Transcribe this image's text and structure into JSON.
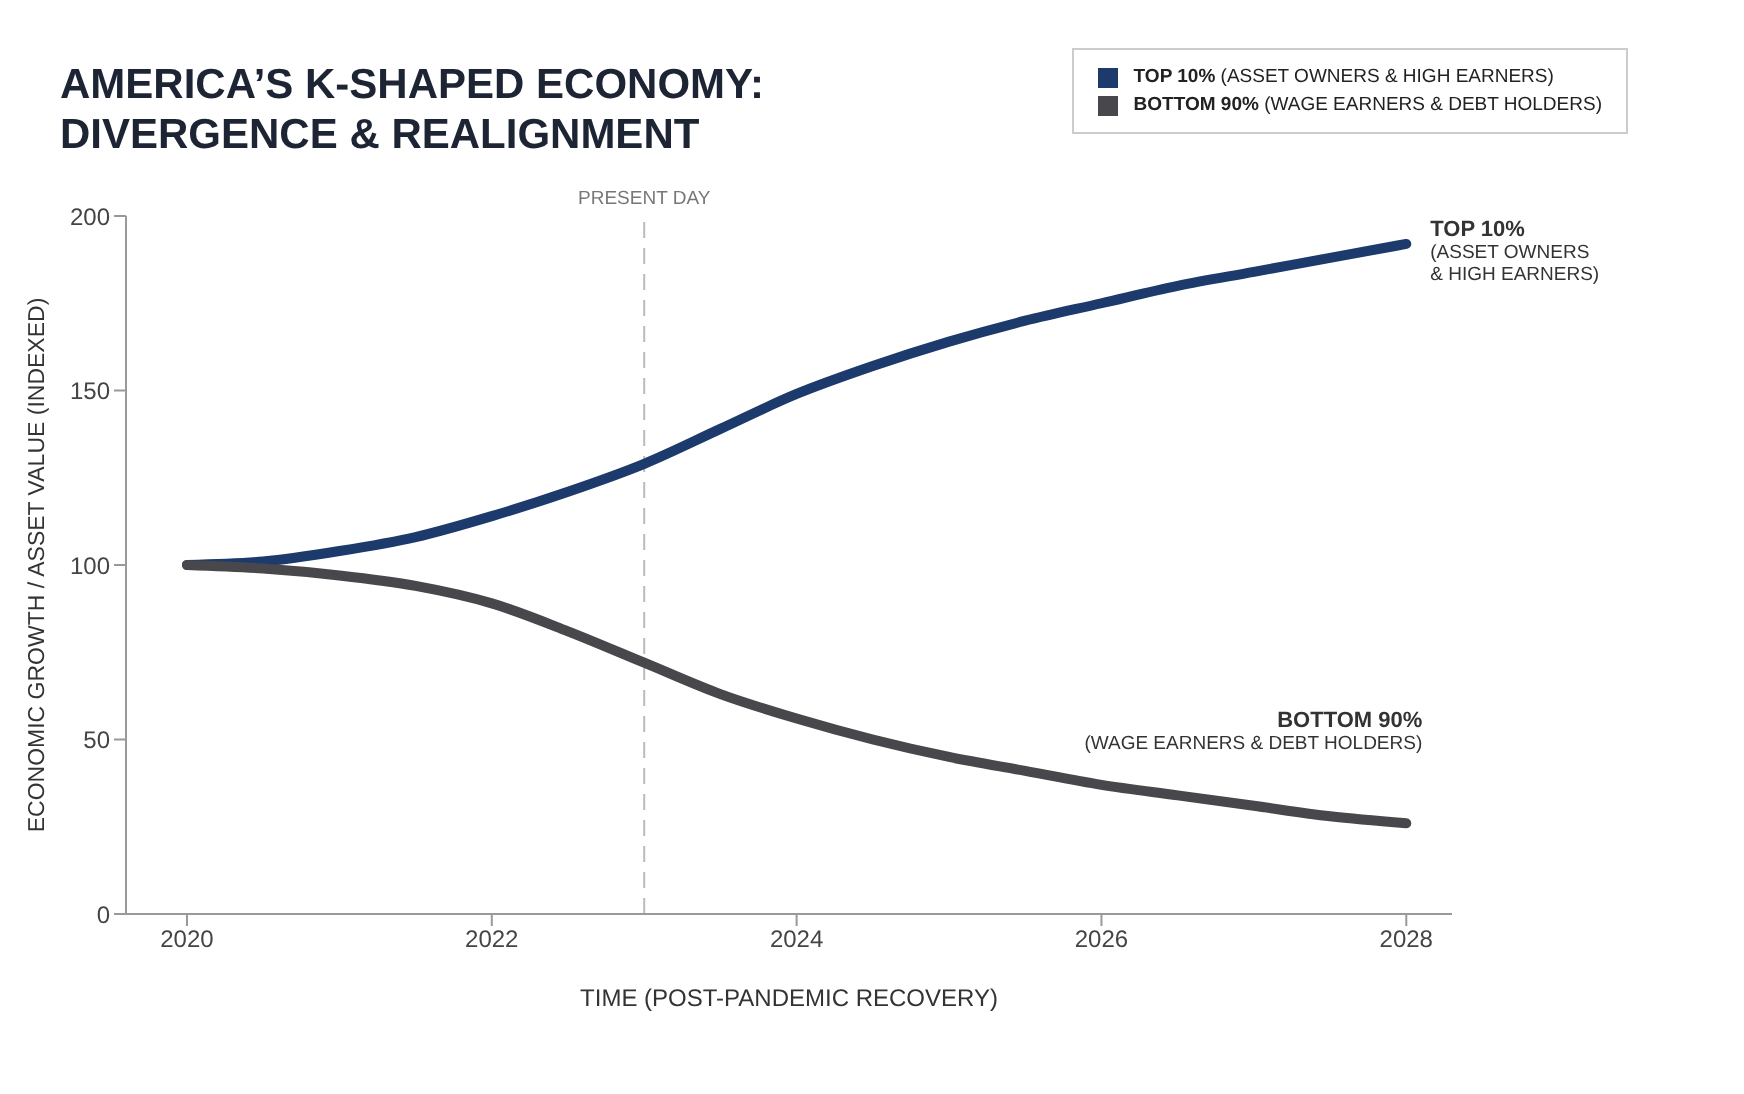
{
  "chart_data": {
    "type": "line",
    "title": "AMERICA’S K-SHAPED ECONOMY:\nDIVERGENCE & REALIGNMENT",
    "xlabel": "TIME (POST-PANDEMIC RECOVERY)",
    "ylabel": "ECONOMIC GROWTH / ASSET VALUE (INDEXED)",
    "x": [
      2020,
      2020.5,
      2021,
      2021.5,
      2022,
      2022.5,
      2023,
      2023.5,
      2024,
      2024.5,
      2025,
      2025.5,
      2026,
      2026.5,
      2027,
      2027.5,
      2028
    ],
    "series": [
      {
        "name": "TOP 10% (ASSET OWNERS & HIGH EARNERS)",
        "color": "#1c3a6b",
        "values": [
          100,
          101,
          104,
          108,
          114,
          121,
          129,
          139,
          149,
          157,
          164,
          170,
          175,
          180,
          184,
          188,
          192
        ]
      },
      {
        "name": "BOTTOM 90% (WAGE EARNERS & DEBT HOLDERS)",
        "color": "#48484c",
        "values": [
          100,
          99,
          97,
          94,
          89,
          81,
          72,
          63,
          56,
          50,
          45,
          41,
          37,
          34,
          31,
          28,
          26
        ]
      }
    ],
    "xlim": [
      2019.6,
      2028.3
    ],
    "xticks": [
      2020,
      2022,
      2024,
      2026,
      2028
    ],
    "ylim": [
      0,
      200
    ],
    "yticks": [
      0,
      50,
      100,
      150,
      200
    ],
    "ref_lines": [
      {
        "axis": "x",
        "value": 2023,
        "label": "PRESENT DAY",
        "color": "#bbbbbb",
        "line_style": "dashed"
      }
    ],
    "annotations": [
      "TOP 10%\n(ASSET OWNERS\n& HIGH EARNERS)",
      "BOTTOM 90%\n(WAGE EARNERS & DEBT HOLDERS)"
    ],
    "legend": "top right",
    "marker": "none",
    "line_style": "solid"
  }
}
